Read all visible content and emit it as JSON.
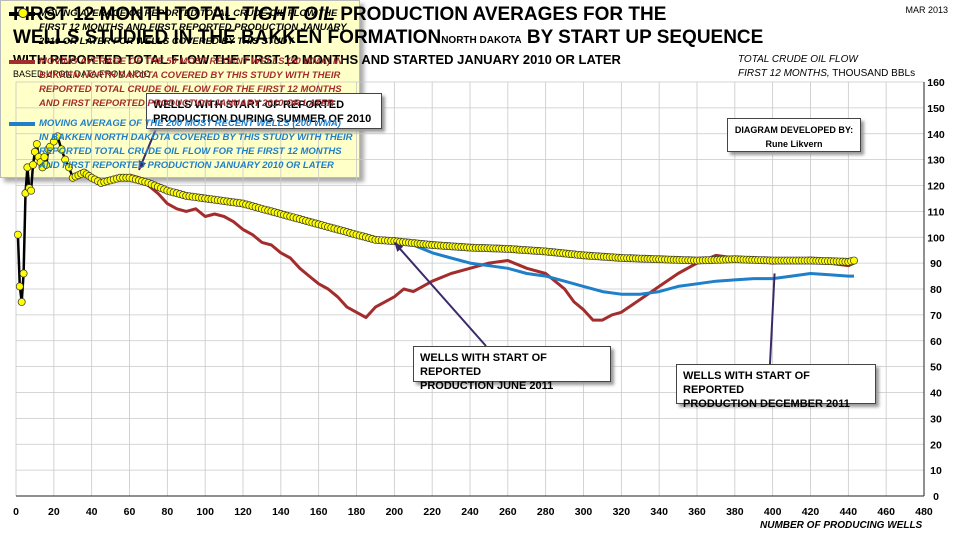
{
  "header": {
    "title_line1_pre": "FIRST 12 MONTH TOTAL ",
    "title_line1_em": "TIGHT OIL",
    "title_line1_post": " PRODUCTION AVERAGES FOR THE",
    "title_line2_pre": "WELLS STUDIED IN THE BAKKEN FORMATION",
    "title_line2_small": "NORTH DAKOTA",
    "title_line2_post": " BY START UP SEQUENCE",
    "subtitle": "WITH REPORTED TOTAL FLOW THE FIRST 12 MONTHS AND STARTED JANUARY 2010 OR LATER",
    "source": "BASED UPON DATA FROM NDIC",
    "date": "MAR 2013"
  },
  "axes": {
    "ylabel_line1": "TOTAL CRUDE OIL FLOW",
    "ylabel_line2_em": "FIRST 12 MONTHS,",
    "ylabel_line2_post": " THOUSAND BBLs",
    "xlabel": "NUMBER OF PRODUCING WELLS"
  },
  "annotations": {
    "summer_2010": [
      "WELLS WITH START OF REPORTED",
      "PRODUCTION DURING SUMMER OF 2010"
    ],
    "june_2011": [
      "WELLS WITH START OF REPORTED",
      "PRODUCTION JUNE 2011"
    ],
    "dec_2011": [
      "WELLS WITH START OF REPORTED",
      "PRODUCTION DECEMBER 2011"
    ],
    "credit_line1": "DIAGRAM DEVELOPED BY:",
    "credit_line2": "Rune Likvern"
  },
  "legend": {
    "items": [
      {
        "color": "#000000",
        "marker": true,
        "text": "MOVING AVERAGE OF REPORTED TOTAL CRUDE OIL FLOW THE FIRST 12 MONTHS AND FIRST REPORTED PRODUCTION JANUARY 2010 OR LATER FOR WELLS COVERED BY THIS STUDY"
      },
      {
        "color": "#a32d2d",
        "marker": false,
        "text": "MOVING AVERAGE OF THE 50 MOST RECENT WELLS (50 WMA) IN BAKKEN NORTH DAKOTA COVERED BY THIS STUDY WITH THEIR REPORTED TOTAL CRUDE OIL FLOW FOR THE FIRST 12 MONTHS AND FIRST REPORTED PRODUCTION JANUARY 2010 OR LATER"
      },
      {
        "color": "#1f7fc8",
        "marker": false,
        "text": "MOVING AVERAGE OF THE 200 MOST RECENT WELLS (200 WMA) IN BAKKEN NORTH DAKOTA COVERED BY THIS STUDY WITH THEIR REPORTED TOTAL CRUDE OIL FLOW FOR THE FIRST 12 MONTHS AND FIRST REPORTED PRODUCTION JANUARY 2010 OR LATER"
      }
    ]
  },
  "chart_data": {
    "type": "line",
    "xlim": [
      0,
      480
    ],
    "ylim": [
      0,
      160
    ],
    "xticks": [
      0,
      20,
      40,
      60,
      80,
      100,
      120,
      140,
      160,
      180,
      200,
      220,
      240,
      260,
      280,
      300,
      320,
      340,
      360,
      380,
      400,
      420,
      440,
      460,
      480
    ],
    "yticks": [
      0,
      10,
      20,
      30,
      40,
      50,
      60,
      70,
      80,
      90,
      100,
      110,
      120,
      130,
      140,
      150,
      160
    ],
    "grid": true,
    "series": [
      {
        "color": "#000000",
        "marker_color": "#ffff00",
        "points": [
          [
            1,
            101
          ],
          [
            2,
            81
          ],
          [
            3,
            75
          ],
          [
            4,
            86
          ],
          [
            5,
            117
          ],
          [
            6,
            127
          ],
          [
            7,
            119
          ],
          [
            8,
            118
          ],
          [
            9,
            128
          ],
          [
            10,
            133
          ],
          [
            11,
            136
          ],
          [
            12,
            131
          ],
          [
            13,
            129
          ],
          [
            14,
            127
          ],
          [
            15,
            131
          ],
          [
            16,
            128
          ],
          [
            17,
            134
          ],
          [
            18,
            135
          ],
          [
            20,
            137
          ],
          [
            22,
            139
          ],
          [
            24,
            134
          ],
          [
            26,
            130
          ],
          [
            28,
            127
          ],
          [
            30,
            123
          ],
          [
            33,
            124
          ],
          [
            36,
            125
          ],
          [
            40,
            123
          ],
          [
            45,
            121
          ],
          [
            50,
            122
          ],
          [
            55,
            123
          ],
          [
            60,
            123
          ],
          [
            65,
            122
          ],
          [
            70,
            121
          ],
          [
            80,
            118
          ],
          [
            90,
            116
          ],
          [
            100,
            115
          ],
          [
            110,
            114
          ],
          [
            120,
            113
          ],
          [
            130,
            111
          ],
          [
            140,
            109
          ],
          [
            150,
            107
          ],
          [
            160,
            105
          ],
          [
            170,
            103
          ],
          [
            180,
            101
          ],
          [
            190,
            99
          ],
          [
            200,
            98.5
          ],
          [
            220,
            97
          ],
          [
            240,
            96
          ],
          [
            260,
            95.5
          ],
          [
            280,
            94.5
          ],
          [
            300,
            93
          ],
          [
            320,
            92
          ],
          [
            340,
            91.5
          ],
          [
            360,
            91
          ],
          [
            380,
            91.5
          ],
          [
            400,
            91
          ],
          [
            420,
            91
          ],
          [
            440,
            90.5
          ],
          [
            443,
            91
          ]
        ]
      },
      {
        "color": "#a32d2d",
        "points": [
          [
            60,
            124
          ],
          [
            65,
            123
          ],
          [
            70,
            120
          ],
          [
            75,
            117
          ],
          [
            80,
            113
          ],
          [
            85,
            111
          ],
          [
            90,
            110
          ],
          [
            95,
            111
          ],
          [
            100,
            108
          ],
          [
            105,
            109
          ],
          [
            110,
            108
          ],
          [
            115,
            106
          ],
          [
            120,
            103
          ],
          [
            125,
            101
          ],
          [
            130,
            98
          ],
          [
            135,
            97
          ],
          [
            140,
            94
          ],
          [
            145,
            92
          ],
          [
            150,
            88
          ],
          [
            155,
            85
          ],
          [
            160,
            82
          ],
          [
            165,
            80
          ],
          [
            170,
            77
          ],
          [
            175,
            73
          ],
          [
            180,
            71
          ],
          [
            185,
            69
          ],
          [
            190,
            73
          ],
          [
            195,
            75
          ],
          [
            200,
            77
          ],
          [
            205,
            80
          ],
          [
            210,
            79
          ],
          [
            215,
            81
          ],
          [
            220,
            83
          ],
          [
            230,
            86
          ],
          [
            240,
            88
          ],
          [
            250,
            90
          ],
          [
            260,
            91
          ],
          [
            270,
            88
          ],
          [
            280,
            86
          ],
          [
            285,
            83
          ],
          [
            290,
            80
          ],
          [
            295,
            75
          ],
          [
            300,
            72
          ],
          [
            305,
            68
          ],
          [
            310,
            68
          ],
          [
            315,
            70
          ],
          [
            320,
            71
          ],
          [
            330,
            76
          ],
          [
            340,
            81
          ],
          [
            350,
            86
          ],
          [
            360,
            90
          ],
          [
            370,
            93
          ],
          [
            380,
            92
          ],
          [
            390,
            91
          ],
          [
            400,
            90
          ],
          [
            410,
            91
          ],
          [
            420,
            92
          ],
          [
            430,
            90
          ],
          [
            440,
            89
          ],
          [
            443,
            90
          ]
        ]
      },
      {
        "color": "#1f7fc8",
        "points": [
          [
            200,
            98.5
          ],
          [
            210,
            97
          ],
          [
            220,
            94
          ],
          [
            230,
            92
          ],
          [
            240,
            90
          ],
          [
            250,
            89
          ],
          [
            260,
            88
          ],
          [
            270,
            86
          ],
          [
            280,
            85
          ],
          [
            290,
            83
          ],
          [
            300,
            81
          ],
          [
            310,
            79
          ],
          [
            320,
            78
          ],
          [
            330,
            78
          ],
          [
            340,
            79
          ],
          [
            350,
            81
          ],
          [
            360,
            82
          ],
          [
            370,
            83
          ],
          [
            380,
            83.5
          ],
          [
            390,
            84
          ],
          [
            400,
            84
          ],
          [
            410,
            85
          ],
          [
            420,
            86
          ],
          [
            430,
            85.5
          ],
          [
            440,
            85
          ],
          [
            443,
            85
          ]
        ]
      }
    ]
  }
}
